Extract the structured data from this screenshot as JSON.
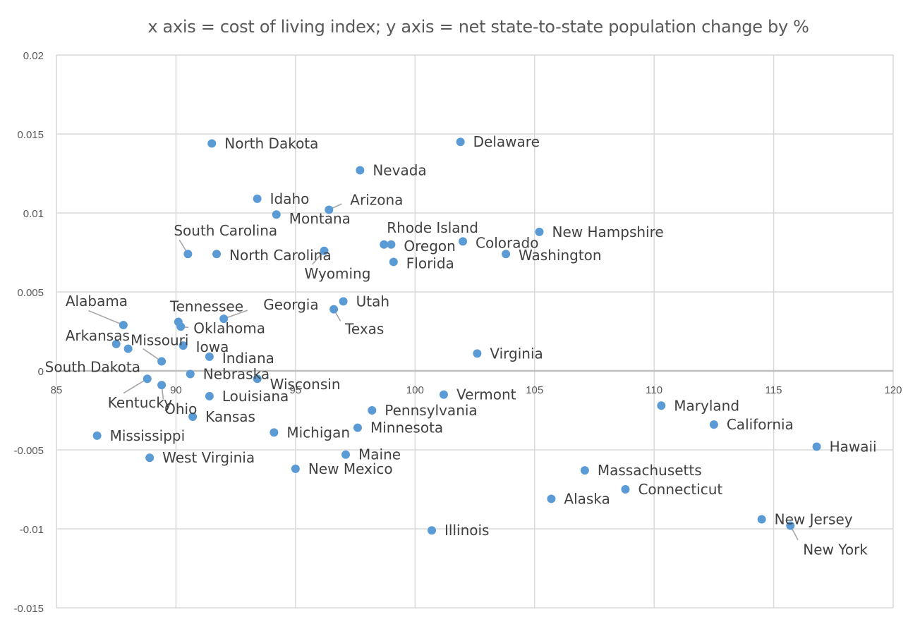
{
  "chart_data": {
    "type": "scatter",
    "title": "x axis = cost of living index; y axis = net state-to-state population change by %",
    "xlabel": "cost of living index",
    "ylabel": "net state-to-state population change by %",
    "xlim": [
      85,
      120
    ],
    "ylim": [
      -0.015,
      0.02
    ],
    "x_ticks": [
      85,
      90,
      95,
      100,
      105,
      110,
      115,
      120
    ],
    "x_tick_labels": [
      "85",
      "90",
      "95",
      "100",
      "105",
      "110",
      "115",
      "120"
    ],
    "y_ticks": [
      -0.015,
      -0.01,
      -0.005,
      0,
      0.005,
      0.01,
      0.015,
      0.02
    ],
    "y_tick_labels": [
      "-0.015",
      "-0.01",
      "-0.005",
      "0",
      "0.005",
      "0.01",
      "0.015",
      "0.02"
    ],
    "grid": true,
    "legend": "none",
    "marker_color": "#5b9bd5",
    "points": [
      {
        "label": "North Dakota",
        "x": 91.5,
        "y": 0.0144
      },
      {
        "label": "Delaware",
        "x": 101.9,
        "y": 0.0145
      },
      {
        "label": "Nevada",
        "x": 97.7,
        "y": 0.0127
      },
      {
        "label": "Idaho",
        "x": 93.4,
        "y": 0.0109
      },
      {
        "label": "Montana",
        "x": 94.2,
        "y": 0.0099
      },
      {
        "label": "Arizona",
        "x": 96.4,
        "y": 0.0102
      },
      {
        "label": "South Carolina",
        "x": 90.5,
        "y": 0.0074
      },
      {
        "label": "North Carolina",
        "x": 91.7,
        "y": 0.0074
      },
      {
        "label": "Wyoming",
        "x": 96.2,
        "y": 0.0076
      },
      {
        "label": "Rhode Island",
        "x": 98.7,
        "y": 0.008
      },
      {
        "label": "Oregon",
        "x": 99.0,
        "y": 0.008
      },
      {
        "label": "Florida",
        "x": 99.1,
        "y": 0.0069
      },
      {
        "label": "Colorado",
        "x": 102.0,
        "y": 0.0082
      },
      {
        "label": "New Hampshire",
        "x": 105.2,
        "y": 0.0088
      },
      {
        "label": "Washington",
        "x": 103.8,
        "y": 0.0074
      },
      {
        "label": "Alabama",
        "x": 87.8,
        "y": 0.0029
      },
      {
        "label": "Tennessee",
        "x": 90.1,
        "y": 0.0031
      },
      {
        "label": "Oklahoma",
        "x": 90.2,
        "y": 0.0028
      },
      {
        "label": "Georgia",
        "x": 92.0,
        "y": 0.0033
      },
      {
        "label": "Utah",
        "x": 97.0,
        "y": 0.0044
      },
      {
        "label": "Texas",
        "x": 96.6,
        "y": 0.0039
      },
      {
        "label": "Arkansas",
        "x": 87.5,
        "y": 0.0017
      },
      {
        "label": "Missouri",
        "x": 89.4,
        "y": 0.0006
      },
      {
        "label": "South Dakota",
        "x": 88.0,
        "y": 0.0014
      },
      {
        "label": "Iowa",
        "x": 90.3,
        "y": 0.0016
      },
      {
        "label": "Indiana",
        "x": 91.4,
        "y": 0.0009
      },
      {
        "label": "Virginia",
        "x": 102.6,
        "y": 0.0011
      },
      {
        "label": "Kentucky",
        "x": 88.8,
        "y": -0.0005
      },
      {
        "label": "Ohio",
        "x": 89.4,
        "y": -0.0009
      },
      {
        "label": "Nebraska",
        "x": 90.6,
        "y": -0.0002
      },
      {
        "label": "Wisconsin",
        "x": 93.4,
        "y": -0.0005
      },
      {
        "label": "Louisiana",
        "x": 91.4,
        "y": -0.0016
      },
      {
        "label": "Vermont",
        "x": 101.2,
        "y": -0.0015
      },
      {
        "label": "Kansas",
        "x": 90.7,
        "y": -0.0029
      },
      {
        "label": "Pennsylvania",
        "x": 98.2,
        "y": -0.0025
      },
      {
        "label": "Maryland",
        "x": 110.3,
        "y": -0.0022
      },
      {
        "label": "California",
        "x": 112.5,
        "y": -0.0034
      },
      {
        "label": "Minnesota",
        "x": 97.6,
        "y": -0.0036
      },
      {
        "label": "Michigan",
        "x": 94.1,
        "y": -0.0039
      },
      {
        "label": "Mississippi",
        "x": 86.7,
        "y": -0.0041
      },
      {
        "label": "Hawaii",
        "x": 116.8,
        "y": -0.0048
      },
      {
        "label": "Maine",
        "x": 97.1,
        "y": -0.0053
      },
      {
        "label": "West Virginia",
        "x": 88.9,
        "y": -0.0055
      },
      {
        "label": "New Mexico",
        "x": 95.0,
        "y": -0.0062
      },
      {
        "label": "Massachusetts",
        "x": 107.1,
        "y": -0.0063
      },
      {
        "label": "Connecticut",
        "x": 108.8,
        "y": -0.0075
      },
      {
        "label": "Alaska",
        "x": 105.7,
        "y": -0.0081
      },
      {
        "label": "New Jersey",
        "x": 114.5,
        "y": -0.0094
      },
      {
        "label": "New York",
        "x": 115.7,
        "y": -0.0098
      },
      {
        "label": "Illinois",
        "x": 100.7,
        "y": -0.0101
      }
    ]
  }
}
